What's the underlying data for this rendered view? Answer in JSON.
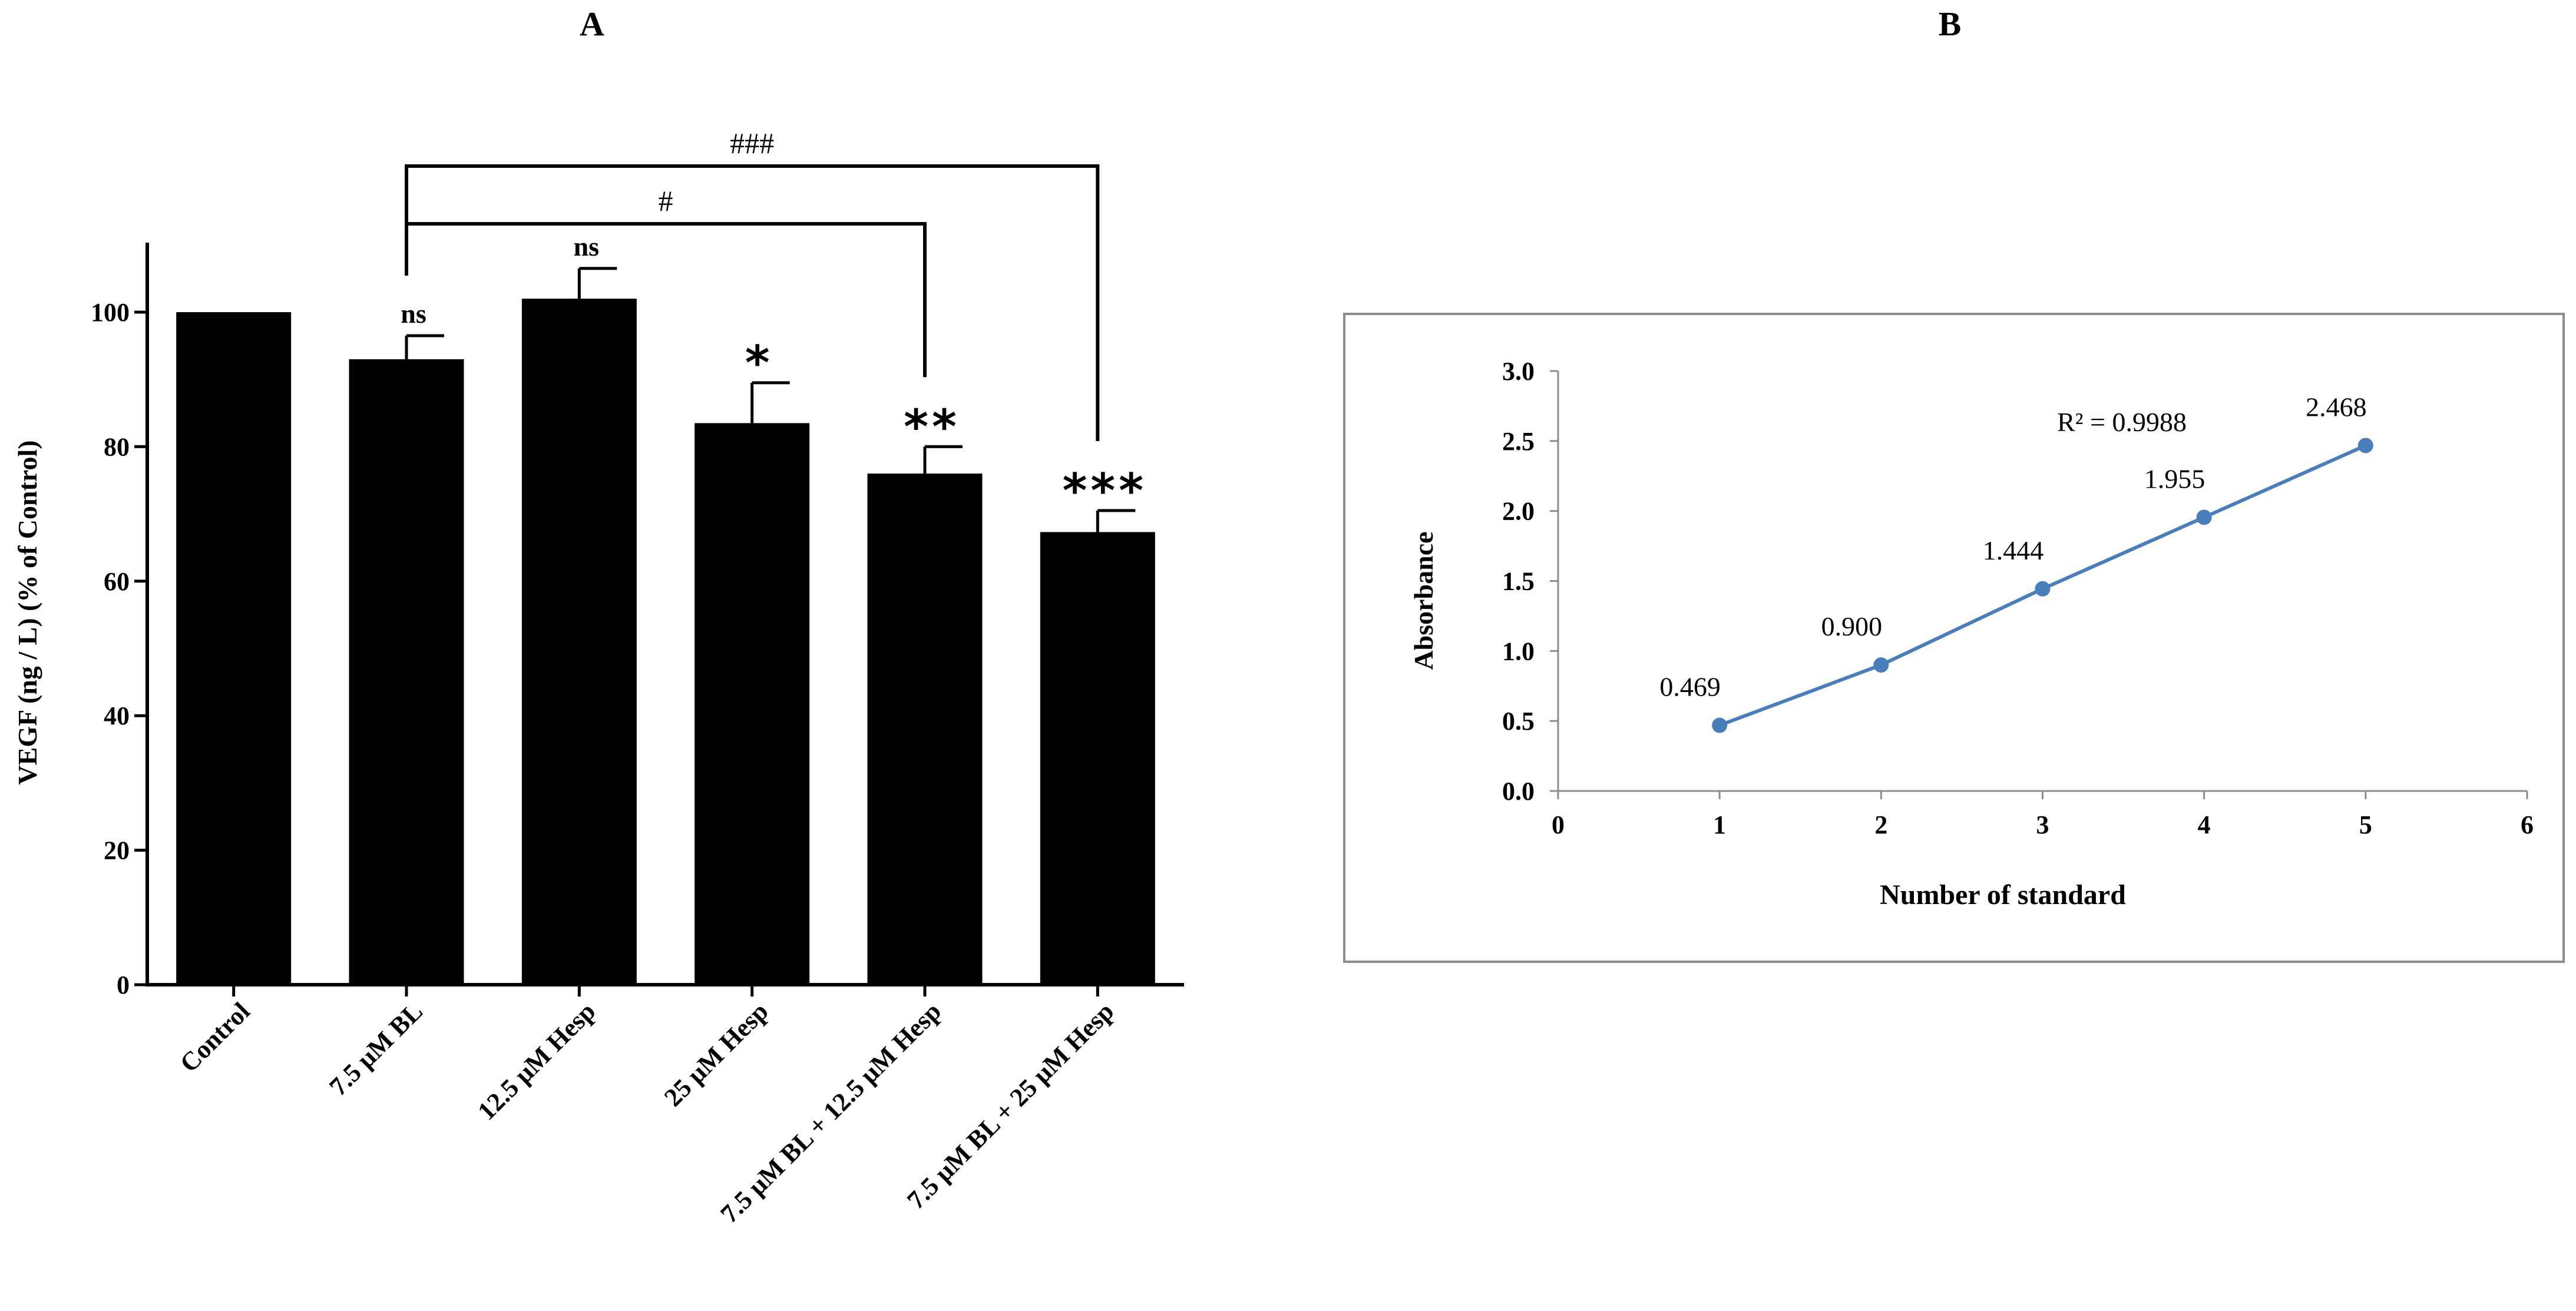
{
  "chart_data": [
    {
      "panel": "A",
      "type": "bar",
      "categories": [
        "Control",
        "7.5 μM BL",
        "12.5 μM Hesp",
        "25 μM Hesp",
        "7.5 μM BL + 12.5 μM Hesp",
        "7.5 μM BL + 25 μM Hesp"
      ],
      "values": [
        100,
        93,
        102,
        83.5,
        76,
        67.3
      ],
      "errors": [
        0,
        3.5,
        4.5,
        6,
        4,
        3.2
      ],
      "significance": [
        "",
        "ns",
        "ns",
        "*",
        "**",
        "***"
      ],
      "ylabel": "VEGF (ng / L) (% of Control)",
      "xlabel": "",
      "ylim": [
        0,
        110
      ],
      "yticks": [
        0,
        20,
        40,
        60,
        80,
        100
      ],
      "brackets": [
        {
          "from": 1,
          "to": 4,
          "label": "#"
        },
        {
          "from": 1,
          "to": 5,
          "label": "###"
        }
      ]
    },
    {
      "panel": "B",
      "type": "line",
      "x": [
        1,
        2,
        3,
        4,
        5
      ],
      "y": [
        0.469,
        0.9,
        1.444,
        1.955,
        2.468
      ],
      "point_labels": [
        "0.469",
        "0.900",
        "1.444",
        "1.955",
        "2.468"
      ],
      "annotation": "R² = 0.9988",
      "xlabel": "Number of standard",
      "ylabel": "Absorbance",
      "xlim": [
        0,
        6
      ],
      "ylim": [
        0,
        3
      ],
      "xticks": [
        "0",
        "1",
        "2",
        "3",
        "4",
        "5",
        "6"
      ],
      "yticks": [
        "0.0",
        "0.5",
        "1.0",
        "1.5",
        "2.0",
        "2.5",
        "3.0"
      ],
      "color": "#4a7ebb"
    }
  ]
}
